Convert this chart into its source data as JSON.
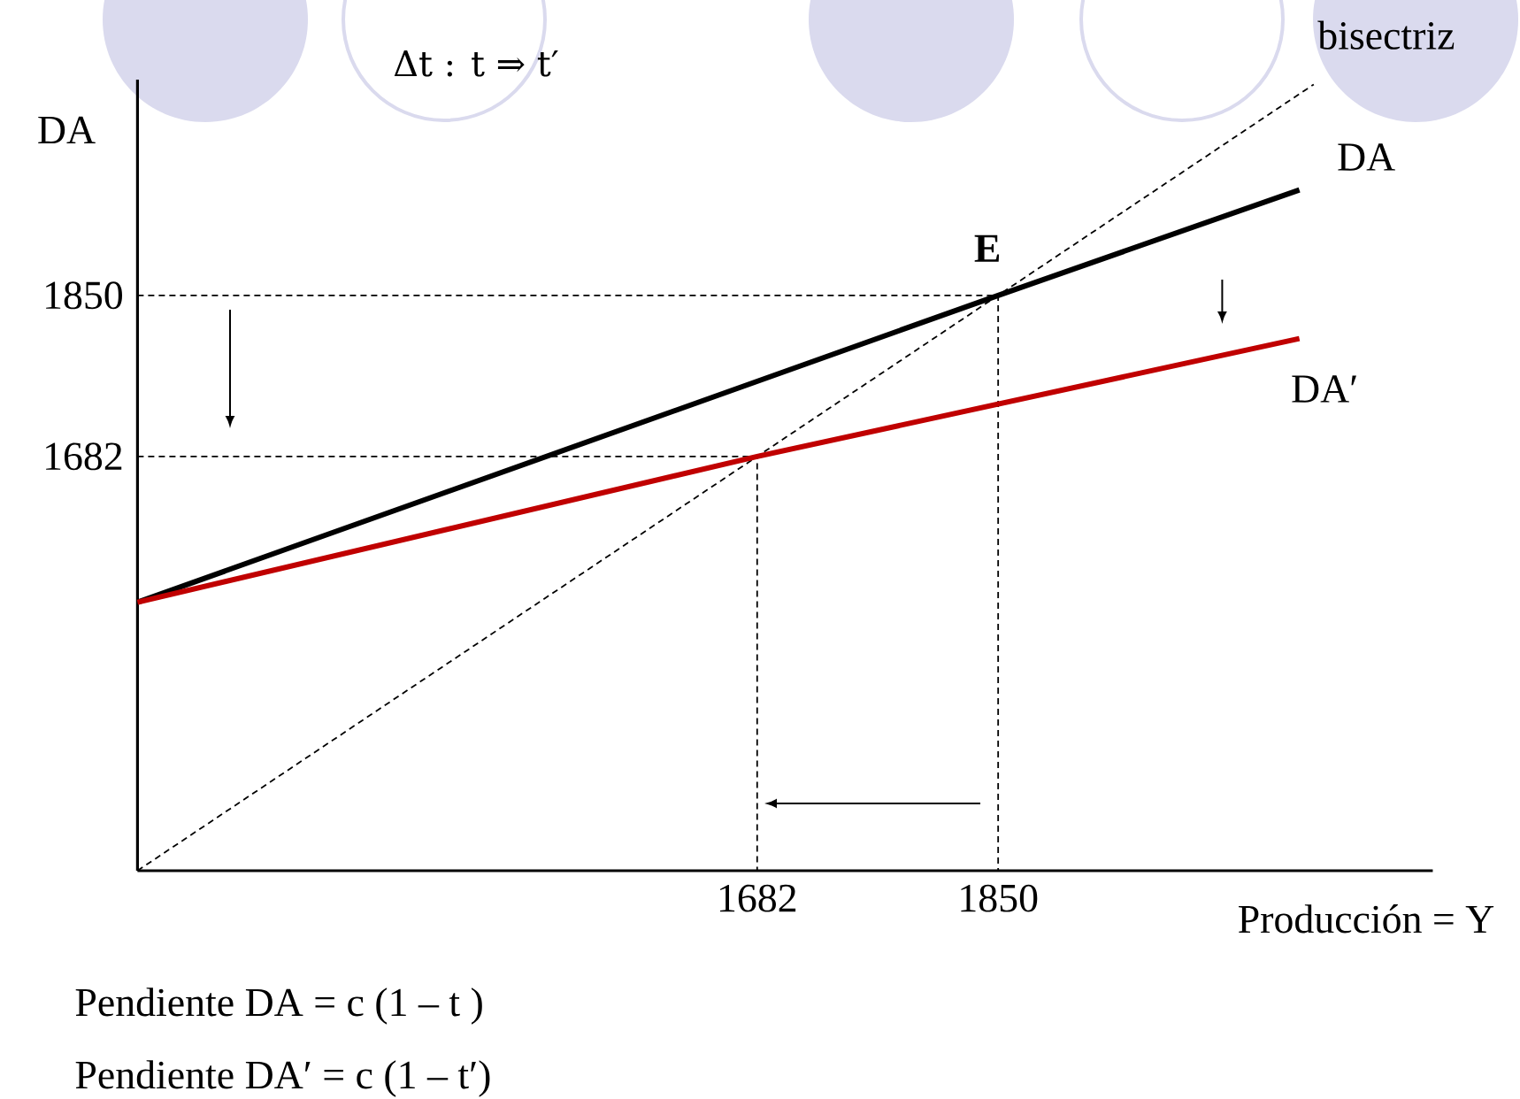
{
  "chart_data": {
    "type": "line",
    "title": "Δt : t ⇒ t′",
    "xlabel": "Producción = Y",
    "ylabel": "DA",
    "xlim": [
      1250,
      2153
    ],
    "ylim": [
      1250,
      2075
    ],
    "xticks": [
      1682,
      1850
    ],
    "yticks": [
      1682,
      1850
    ],
    "series": [
      {
        "color": "#000000",
        "line_style": "dashed",
        "x": [
          1250,
          1850,
          1850
        ],
        "values": [
          1850,
          1850,
          1250
        ]
      },
      {
        "color": "#000000",
        "line_style": "dashed",
        "x": [
          1250,
          1682,
          1682
        ],
        "values": [
          1682,
          1682,
          1250
        ]
      },
      {
        "name": "bisectriz",
        "color": "#000000",
        "line_style": "dashed",
        "x": [
          1250,
          2070
        ],
        "values": [
          1250,
          2070
        ]
      },
      {
        "name": "DA",
        "color": "#000000",
        "x": [
          1250,
          1850,
          2060
        ],
        "values": [
          1530,
          1850,
          1960
        ]
      },
      {
        "name": "DA′",
        "color": "#c00000",
        "x": [
          1250,
          1682,
          2060
        ],
        "values": [
          1530,
          1682,
          1805
        ]
      }
    ],
    "annotations": [
      {
        "text": "E",
        "x": 1850,
        "y": 1850
      },
      "Pendiente DA = c (1 – t )",
      "Pendiente DA′ = c (1 – t′)"
    ]
  }
}
